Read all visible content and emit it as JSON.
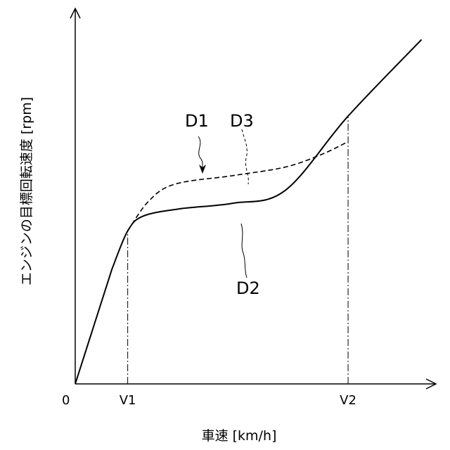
{
  "chart_data": {
    "type": "line",
    "xlabel": "車速 [km/h]",
    "ylabel": "エンジンの目標回転速度 [rpm]",
    "origin_label": "0",
    "x_ticks": [
      {
        "label": "V1",
        "x": 1.0
      },
      {
        "label": "V2",
        "x": 5.2
      }
    ],
    "xlim": [
      0,
      6.7
    ],
    "ylim": [
      0,
      8.8
    ],
    "series": [
      {
        "name": "D2",
        "style": "solid",
        "points": [
          [
            0,
            0
          ],
          [
            0.7,
            2.7
          ],
          [
            1.0,
            3.6
          ],
          [
            1.3,
            3.95
          ],
          [
            2,
            4.12
          ],
          [
            3,
            4.25
          ],
          [
            4,
            4.55
          ],
          [
            5.2,
            6.3
          ],
          [
            6.6,
            8.1
          ]
        ]
      },
      {
        "name": "D3",
        "style": "dashed",
        "points": [
          [
            1.0,
            3.6
          ],
          [
            1.4,
            4.3
          ],
          [
            1.9,
            4.7
          ],
          [
            3,
            4.9
          ],
          [
            4,
            5.1
          ],
          [
            4.7,
            5.4
          ],
          [
            5.2,
            5.7
          ]
        ]
      }
    ],
    "annotations": [
      {
        "label": "D1",
        "kind": "arrow"
      },
      {
        "label": "D2",
        "kind": "leader"
      },
      {
        "label": "D3",
        "kind": "leader"
      }
    ]
  }
}
